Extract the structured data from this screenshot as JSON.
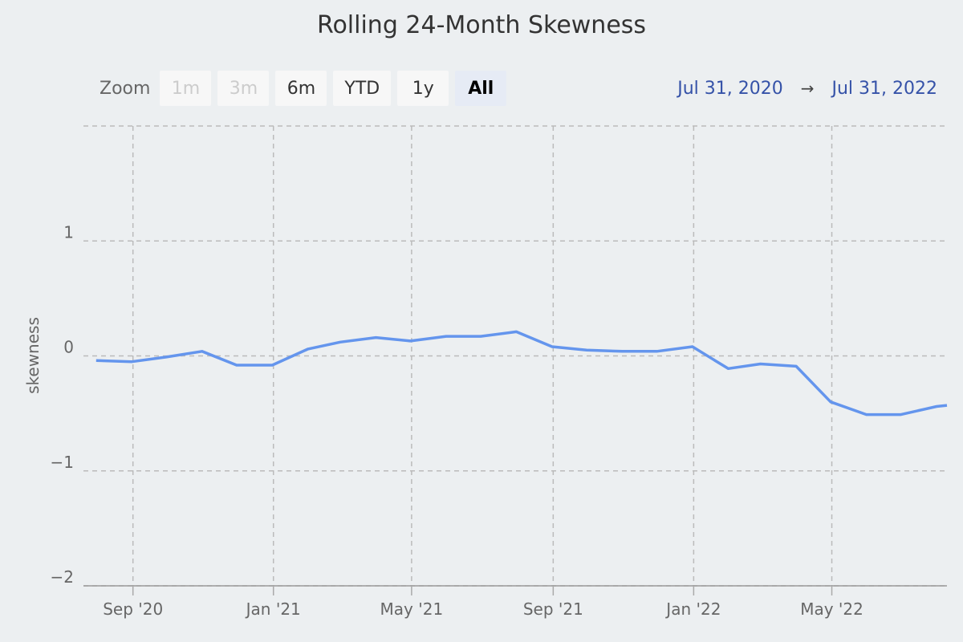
{
  "title": "Rolling 24-Month Skewness",
  "zoom": {
    "label": "Zoom",
    "buttons": [
      {
        "label": "1m",
        "state": "disabled"
      },
      {
        "label": "3m",
        "state": "disabled"
      },
      {
        "label": "6m",
        "state": "normal"
      },
      {
        "label": "YTD",
        "state": "normal"
      },
      {
        "label": "1y",
        "state": "normal"
      },
      {
        "label": "All",
        "state": "selected"
      }
    ]
  },
  "range": {
    "from": "Jul 31, 2020",
    "arrow": "→",
    "to": "Jul 31, 2022"
  },
  "colors": {
    "line": "#6495ed",
    "grid": "#bbbbbb",
    "range_date": "#3552a8"
  },
  "chart_data": {
    "type": "line",
    "title": "Rolling 24-Month Skewness",
    "xlabel": "",
    "ylabel": "skewness",
    "ylim": [
      -2,
      2
    ],
    "yticks": [
      -2,
      -1,
      0,
      1,
      2
    ],
    "ytick_labels": [
      "−2",
      "−1",
      "0",
      "1",
      ""
    ],
    "xlim": [
      "2020-07-20",
      "2022-08-09"
    ],
    "xticks": [
      {
        "date": "2020-09-01",
        "label": "Sep '20"
      },
      {
        "date": "2021-01-01",
        "label": "Jan '21"
      },
      {
        "date": "2021-05-01",
        "label": "May '21"
      },
      {
        "date": "2021-09-01",
        "label": "Sep '21"
      },
      {
        "date": "2022-01-01",
        "label": "Jan '22"
      },
      {
        "date": "2022-05-01",
        "label": "May '22"
      }
    ],
    "grid": true,
    "series": [
      {
        "x": [
          "2020-07-31",
          "2020-08-31",
          "2020-09-30",
          "2020-10-31",
          "2020-11-30",
          "2020-12-31",
          "2021-01-31",
          "2021-02-28",
          "2021-03-31",
          "2021-04-30",
          "2021-05-31",
          "2021-06-30",
          "2021-07-31",
          "2021-08-31",
          "2021-09-30",
          "2021-10-31",
          "2021-11-30",
          "2021-12-31",
          "2022-01-31",
          "2022-02-28",
          "2022-03-31",
          "2022-04-30",
          "2022-05-31",
          "2022-06-30",
          "2022-07-31",
          "2022-08-09"
        ],
        "values": [
          -0.04,
          -0.05,
          -0.01,
          0.04,
          -0.08,
          -0.08,
          0.06,
          0.12,
          0.16,
          0.13,
          0.17,
          0.17,
          0.21,
          0.08,
          0.05,
          0.04,
          0.04,
          0.08,
          -0.11,
          -0.07,
          -0.09,
          -0.4,
          -0.51,
          -0.51,
          -0.44,
          -0.43
        ]
      }
    ]
  }
}
